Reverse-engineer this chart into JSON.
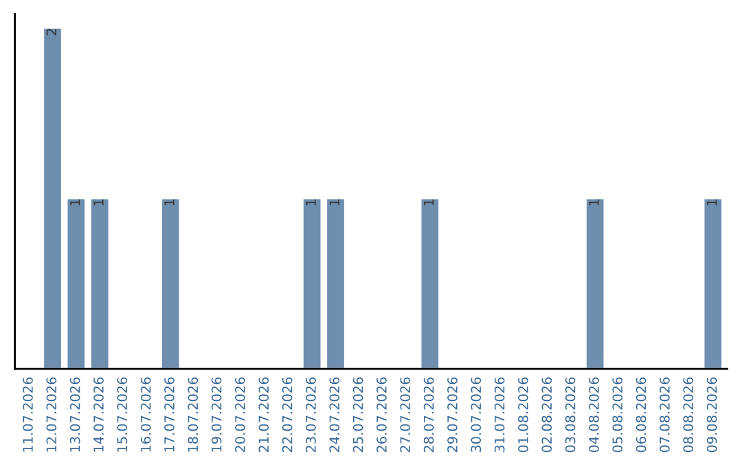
{
  "chart_data": {
    "type": "bar",
    "categories": [
      "11.07.2026",
      "12.07.2026",
      "13.07.2026",
      "14.07.2026",
      "15.07.2026",
      "16.07.2026",
      "17.07.2026",
      "18.07.2026",
      "19.07.2026",
      "20.07.2026",
      "21.07.2026",
      "22.07.2026",
      "23.07.2026",
      "24.07.2026",
      "25.07.2026",
      "26.07.2026",
      "27.07.2026",
      "28.07.2026",
      "29.07.2026",
      "30.07.2026",
      "31.07.2026",
      "01.08.2026",
      "02.08.2026",
      "03.08.2026",
      "04.08.2026",
      "05.08.2026",
      "06.08.2026",
      "07.08.2026",
      "08.08.2026",
      "09.08.2026"
    ],
    "values": [
      null,
      2,
      1,
      1,
      null,
      null,
      1,
      null,
      null,
      null,
      null,
      null,
      1,
      1,
      null,
      null,
      null,
      1,
      null,
      null,
      null,
      null,
      null,
      null,
      1,
      null,
      null,
      null,
      null,
      1
    ],
    "data_labels": true,
    "color": "#6e8eaf",
    "grid": false,
    "legend": false
  }
}
